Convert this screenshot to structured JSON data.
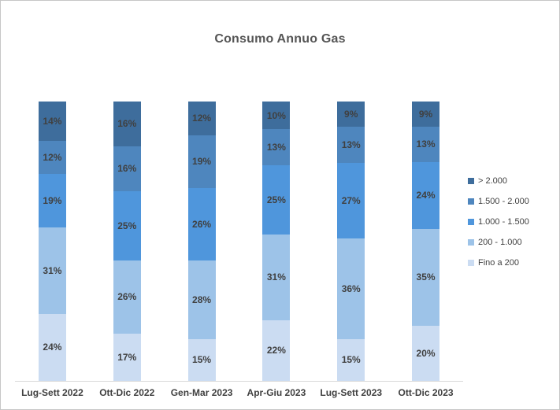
{
  "title": "Consumo Annuo Gas",
  "chart_data": {
    "type": "bar",
    "variant": "stacked-100",
    "title": "Consumo Annuo Gas",
    "xlabel": "",
    "ylabel": "",
    "grid": false,
    "legend_position": "right",
    "value_suffix": "%",
    "categories": [
      "Lug-Sett 2022",
      "Ott-Dic 2022",
      "Gen-Mar 2023",
      "Apr-Giu 2023",
      "Lug-Sett 2023",
      "Ott-Dic 2023"
    ],
    "series": [
      {
        "name": "> 2.000",
        "color": "#3e6d9c",
        "values": [
          14,
          16,
          12,
          10,
          9,
          9
        ]
      },
      {
        "name": "1.500 - 2.000",
        "color": "#4e86be",
        "values": [
          12,
          16,
          19,
          13,
          13,
          13
        ]
      },
      {
        "name": "1.000 - 1.500",
        "color": "#4f96dc",
        "values": [
          19,
          25,
          26,
          25,
          27,
          24
        ]
      },
      {
        "name": "200 - 1.000",
        "color": "#9dc3e8",
        "values": [
          31,
          26,
          28,
          31,
          36,
          35
        ]
      },
      {
        "name": "Fino a 200",
        "color": "#cbdcf2",
        "values": [
          24,
          17,
          15,
          22,
          15,
          20
        ]
      }
    ]
  },
  "colors": {
    "data_label": "#404040",
    "title_text": "#555555",
    "axis_line": "#d9d9d9",
    "chart_border": "#c6c6c6"
  }
}
